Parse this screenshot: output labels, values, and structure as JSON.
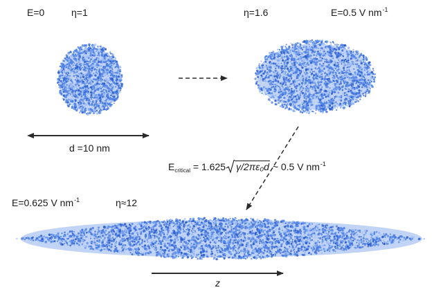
{
  "colors": {
    "droplet_dark": "#2e5fcf",
    "droplet_mid": "#4f83e6",
    "droplet_light": "#9dbdf6",
    "arrow": "#2b2b2b",
    "text": "#1a1a1a"
  },
  "stage1": {
    "field_label": "E=0",
    "eta_label": "η=1",
    "diameter_label": "d =10 nm"
  },
  "stage2": {
    "eta_label": "η=1.6",
    "field_label_main": "E=0.5 V nm",
    "field_label_exp": "-1"
  },
  "critical": {
    "lhs_main": "E",
    "lhs_sub": "critical",
    "equals_coeff": "= 1.625",
    "radicand": "γ/2πε₀d",
    "rhs_main": "~ 0.5 V nm",
    "rhs_exp": "-1"
  },
  "stage3": {
    "field_label_main": "E=0.625 V nm",
    "field_label_exp": "-1",
    "eta_label": "η≈12"
  },
  "axis": {
    "label": "z"
  }
}
